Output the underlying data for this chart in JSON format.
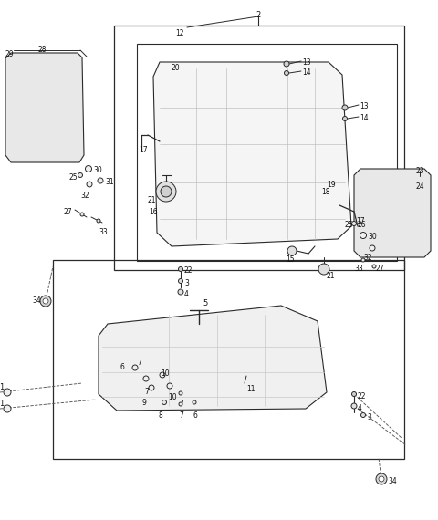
{
  "bg_color": "#ffffff",
  "line_color": "#2a2a2a",
  "fig_width": 4.8,
  "fig_height": 5.7,
  "dpi": 100
}
